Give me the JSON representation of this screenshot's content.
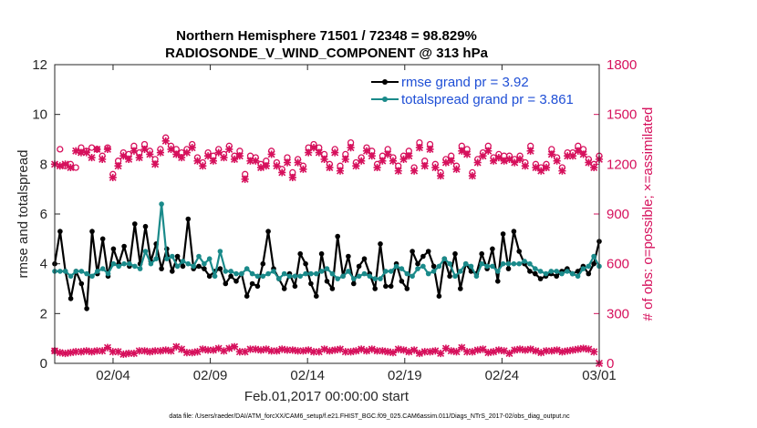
{
  "chart_data": {
    "type": "line",
    "title": "Northern Hemisphere 71501 / 72348 = 98.829%",
    "subtitle": "RADIOSONDE_V_WIND_COMPONENT @ 313 hPa",
    "xlabel": "Feb.01,2017 00:00:00 start",
    "ylabel_left": "rmse and totalspread",
    "ylabel_right": "# of obs: o=possible; ×=assimilated",
    "xlim": [
      1,
      29
    ],
    "ylim_left": [
      0,
      12
    ],
    "ylim_right": [
      0,
      1800
    ],
    "x_ticks": [
      {
        "value": 4,
        "label": "02/04"
      },
      {
        "value": 9,
        "label": "02/09"
      },
      {
        "value": 14,
        "label": "02/14"
      },
      {
        "value": 19,
        "label": "02/19"
      },
      {
        "value": 24,
        "label": "02/24"
      },
      {
        "value": 29,
        "label": "03/01"
      }
    ],
    "y_ticks_left": [
      "0",
      "2",
      "4",
      "6",
      "8",
      "10",
      "12"
    ],
    "y_ticks_right": [
      "0",
      "300",
      "600",
      "900",
      "1200",
      "1500",
      "1800"
    ],
    "legend": [
      {
        "label": "rmse grand pr = 3.92",
        "color": "#000000"
      },
      {
        "label": "totalspread grand pr = 3.861",
        "color": "#1a8a8a"
      }
    ],
    "legend_position": "top-right",
    "series": [
      {
        "name": "rmse",
        "axis": "left",
        "color": "#000000",
        "values": [
          4.0,
          5.3,
          3.7,
          2.6,
          3.7,
          3.2,
          2.2,
          5.3,
          3.6,
          5.0,
          3.5,
          4.6,
          4.0,
          4.7,
          3.9,
          5.6,
          4.0,
          5.5,
          4.1,
          4.8,
          3.8,
          4.6,
          3.7,
          4.3,
          3.9,
          5.8,
          3.8,
          3.9,
          3.8,
          3.5,
          3.7,
          3.8,
          3.2,
          3.5,
          3.3,
          3.6,
          2.7,
          3.2,
          3.1,
          4.0,
          5.3,
          3.8,
          3.4,
          3.0,
          3.6,
          3.1,
          4.4,
          4.0,
          3.2,
          2.7,
          4.4,
          3.3,
          3.0,
          5.1,
          3.5,
          4.3,
          3.2,
          3.9,
          4.2,
          3.6,
          3.0,
          4.8,
          3.1,
          3.1,
          4.0,
          3.3,
          3.0,
          4.5,
          4.0,
          4.3,
          4.5,
          3.9,
          2.7,
          4.2,
          3.5,
          4.4,
          3.0,
          4.0,
          3.7,
          3.6,
          4.4,
          3.8,
          4.6,
          3.3,
          5.2,
          3.8,
          5.3,
          4.5,
          4.0,
          3.7,
          3.6,
          3.4,
          3.5,
          3.6,
          3.5,
          3.7,
          3.8,
          3.6,
          3.7,
          3.9,
          3.6,
          4.0,
          4.9
        ]
      },
      {
        "name": "totalspread",
        "axis": "left",
        "color": "#1a8a8a",
        "values": [
          3.7,
          3.7,
          3.7,
          3.5,
          3.7,
          3.7,
          3.6,
          3.5,
          3.7,
          3.8,
          3.6,
          4.0,
          3.9,
          4.0,
          4.0,
          3.9,
          3.8,
          4.5,
          4.0,
          4.2,
          6.4,
          4.2,
          4.3,
          3.9,
          4.1,
          4.0,
          3.9,
          4.3,
          4.0,
          4.2,
          3.5,
          4.5,
          3.7,
          3.7,
          3.6,
          3.6,
          3.8,
          3.6,
          3.5,
          3.5,
          3.6,
          3.7,
          3.4,
          3.6,
          3.5,
          3.5,
          3.5,
          3.6,
          3.6,
          3.6,
          3.7,
          3.8,
          3.6,
          3.4,
          3.5,
          3.7,
          3.4,
          3.5,
          3.6,
          3.5,
          3.4,
          3.4,
          3.7,
          3.7,
          3.9,
          3.8,
          3.6,
          3.5,
          3.8,
          3.9,
          3.6,
          3.7,
          3.9,
          4.2,
          4.0,
          3.5,
          3.7,
          4.0,
          3.9,
          3.5,
          4.0,
          3.9,
          3.9,
          3.7,
          4.0,
          4.0,
          4.0,
          4.0,
          4.1,
          4.0,
          3.8,
          3.7,
          3.6,
          3.7,
          3.7,
          3.6,
          3.7,
          3.6,
          3.5,
          3.8,
          3.9,
          4.3,
          3.9
        ]
      },
      {
        "name": "obs possible",
        "axis": "right",
        "color": "#d6105c",
        "values": [
          75,
          1290,
          1190,
          1200,
          1180,
          1300,
          1280,
          1300,
          1290,
          1250,
          1300,
          1140,
          1220,
          1270,
          1260,
          1310,
          1270,
          1320,
          1280,
          1230,
          1290,
          1360,
          1310,
          1290,
          1270,
          1290,
          1320,
          1240,
          1210,
          1270,
          1250,
          1290,
          1260,
          1310,
          1250,
          1280,
          1140,
          1250,
          1240,
          1200,
          1220,
          1280,
          1210,
          1170,
          1240,
          1150,
          1230,
          1190,
          1300,
          1320,
          1300,
          1260,
          1200,
          1290,
          1190,
          1260,
          1330,
          1210,
          1240,
          1300,
          1280,
          1200,
          1250,
          1290,
          1240,
          1190,
          1250,
          1280,
          1180,
          1330,
          1220,
          1320,
          1200,
          1150,
          1230,
          1250,
          1190,
          1310,
          1290,
          1150,
          1230,
          1270,
          1310,
          1240,
          1260,
          1250,
          1250,
          1230,
          1250,
          1210,
          1310,
          1200,
          1180,
          1200,
          1290,
          1240,
          1180,
          1270,
          1270,
          1310,
          1290,
          1230,
          1200,
          1250
        ]
      },
      {
        "name": "obs assimilated",
        "axis": "right",
        "color": "#d6105c",
        "values": [
          1200,
          1190,
          1200,
          1180,
          1280,
          1270,
          1270,
          1240,
          1290,
          1230,
          1290,
          1120,
          1190,
          1250,
          1230,
          1280,
          1240,
          1290,
          1260,
          1200,
          1270,
          1340,
          1290,
          1260,
          1240,
          1270,
          1300,
          1220,
          1190,
          1250,
          1220,
          1270,
          1240,
          1290,
          1230,
          1250,
          1110,
          1220,
          1220,
          1180,
          1190,
          1260,
          1190,
          1150,
          1210,
          1120,
          1210,
          1170,
          1270,
          1300,
          1270,
          1230,
          1180,
          1270,
          1160,
          1230,
          1300,
          1190,
          1220,
          1280,
          1250,
          1180,
          1220,
          1260,
          1220,
          1160,
          1230,
          1250,
          1160,
          1300,
          1190,
          1290,
          1180,
          1130,
          1210,
          1220,
          1170,
          1280,
          1260,
          1130,
          1210,
          1250,
          1280,
          1220,
          1240,
          1220,
          1230,
          1210,
          1230,
          1190,
          1280,
          1180,
          1160,
          1180,
          1260,
          1220,
          1160,
          1250,
          1250,
          1280,
          1260,
          1210,
          1180,
          1230
        ]
      },
      {
        "name": "obs low",
        "axis": "right",
        "color": "#d6105c",
        "values": [
          75,
          65,
          60,
          65,
          70,
          70,
          75,
          70,
          75,
          75,
          95,
          70,
          70,
          55,
          60,
          60,
          75,
          75,
          70,
          75,
          75,
          80,
          75,
          100,
          85,
          65,
          65,
          70,
          85,
          80,
          80,
          90,
          75,
          90,
          100,
          70,
          70,
          85,
          85,
          80,
          85,
          75,
          75,
          85,
          80,
          80,
          75,
          75,
          80,
          70,
          70,
          85,
          75,
          80,
          85,
          70,
          70,
          75,
          85,
          75,
          85,
          75,
          75,
          70,
          65,
          85,
          80,
          70,
          80,
          60,
          70,
          70,
          75,
          60,
          90,
          75,
          70,
          95,
          70,
          70,
          80,
          85,
          65,
          70,
          80,
          75,
          60,
          80,
          85,
          80,
          85,
          75,
          65,
          75,
          75,
          80,
          70,
          75,
          80,
          85,
          90,
          85,
          70,
          0
        ]
      }
    ],
    "footer_text": "data file: /Users/raeder/DAI/ATM_forcXX/CAM6_setup/f.e21.FHIST_BGC.f09_025.CAM6assim.011/Diags_NTrS_2017-02/obs_diag_output.nc"
  },
  "colors": {
    "rmse": "#000000",
    "spread": "#1a8a8a",
    "obs": "#d6105c",
    "legend_text": "#1f4fd6"
  }
}
